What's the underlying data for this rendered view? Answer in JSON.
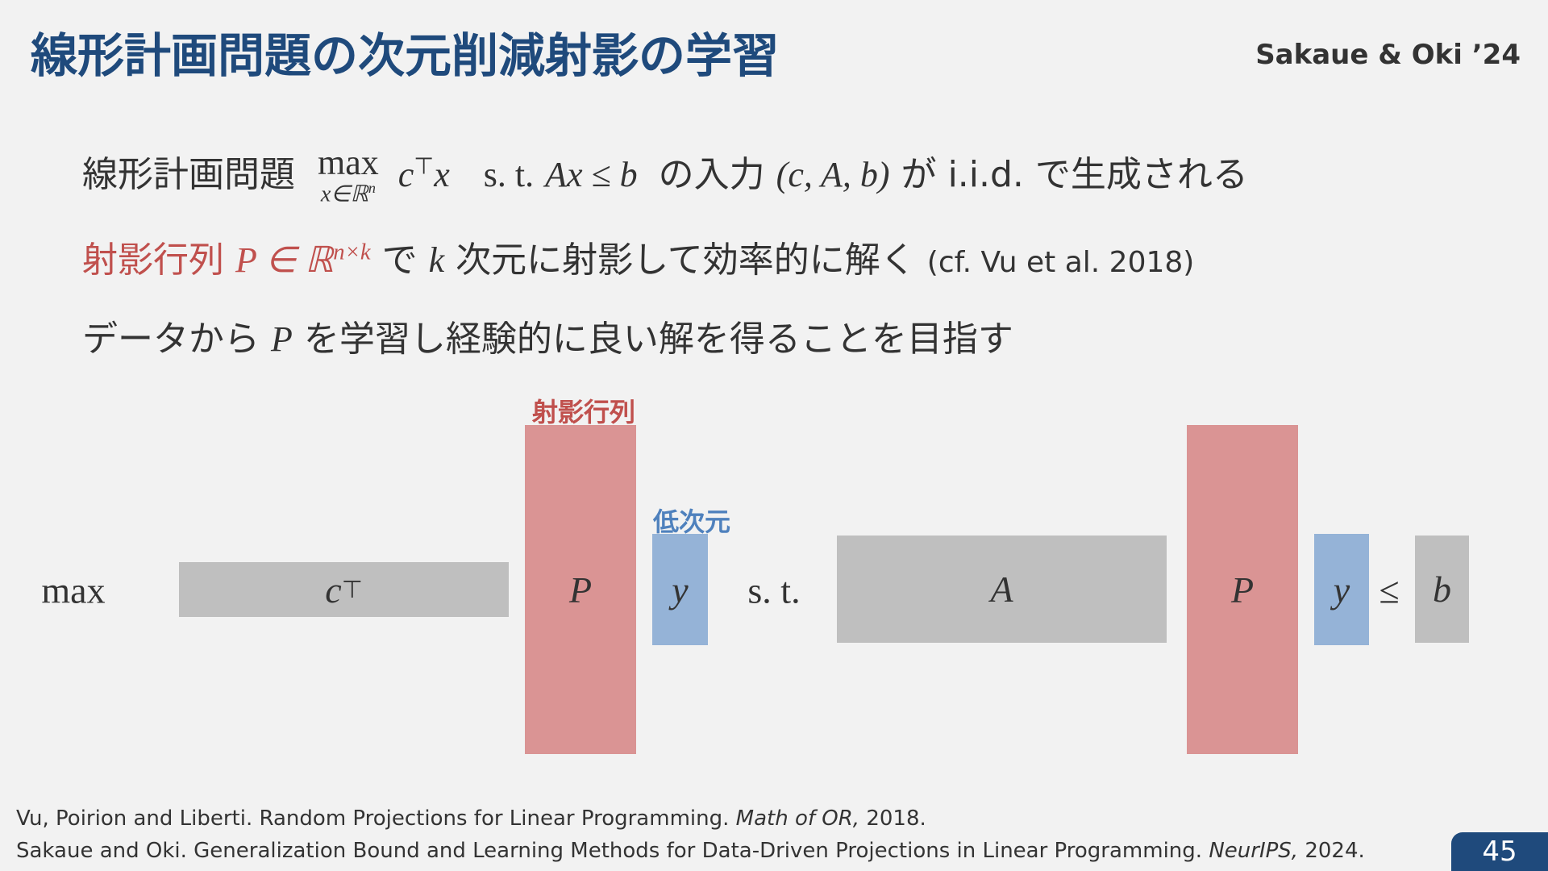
{
  "header": {
    "title": "線形計画問題の次元削減射影の学習",
    "authors": "Sakaue & Oki ’24"
  },
  "bullets": [
    {
      "lead": "線形計画問題",
      "op": "max",
      "sub": "x∈ℝ",
      "sub_sup": "n",
      "obj": "c",
      "obj_sup": "⊤",
      "obj_var": "x",
      "st": "s. t.",
      "constraint": "Ax ≤ b",
      "mid": "の入力",
      "tuple": "(c, A, b)",
      "tail": "が i.i.d. で生成される"
    },
    {
      "lead": "射影行列",
      "matrix": "P ∈ ℝ",
      "matrix_sup": "n×k",
      "mid": "で",
      "k": "k",
      "tail": "次元に射影して効率的に解く",
      "cite": "(cf. Vu et al. 2018)"
    },
    {
      "lead": "データから",
      "matrix": "P",
      "tail": "を学習し経験的に良い解を得ることを目指す"
    }
  ],
  "diagram": {
    "max": "max",
    "c": "c",
    "c_sup": "⊤",
    "P1": "P",
    "P1_label": "射影行列",
    "y1": "y",
    "y1_label": "低次元",
    "st": "s. t.",
    "A": "A",
    "P2": "P",
    "y2": "y",
    "leq": "≤",
    "b": "b"
  },
  "references": [
    {
      "text": "Vu, Poirion and Liberti. Random Projections for Linear Programming.",
      "venue": "Math of OR,",
      "year": "2018."
    },
    {
      "text": "Sakaue and Oki. Generalization Bound and Learning Methods for Data-Driven Projections in Linear Programming.",
      "venue": "NeurIPS,",
      "year": "2024."
    }
  ],
  "page_number": "45"
}
